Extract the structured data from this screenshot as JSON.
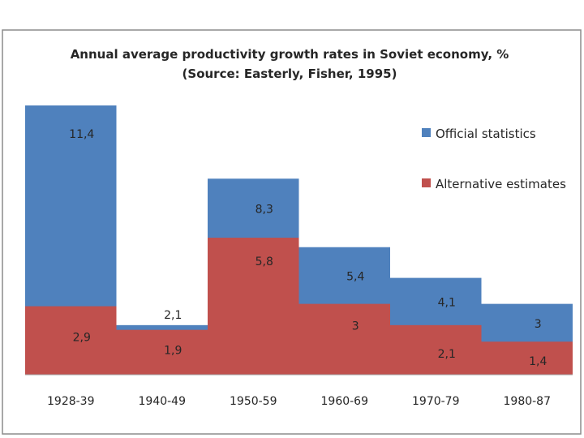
{
  "chart_data": {
    "type": "bar",
    "title": "Annual average productivity growth rates in Soviet economy, %",
    "subtitle": "(Source: Easterly, Fisher, 1995)",
    "categories": [
      "1928-39",
      "1940-49",
      "1950-59",
      "1960-69",
      "1970-79",
      "1980-87"
    ],
    "series": [
      {
        "name": "Official statistics",
        "color": "#4f81bd",
        "values": [
          11.4,
          2.1,
          8.3,
          5.4,
          4.1,
          3
        ]
      },
      {
        "name": "Alternative estimates",
        "color": "#c0504d",
        "values": [
          2.9,
          1.9,
          5.8,
          3,
          2.1,
          1.4
        ]
      }
    ],
    "value_labels": {
      "official": [
        "11,4",
        "2,1",
        "8,3",
        "5,4",
        "4,1",
        "3"
      ],
      "alternative": [
        "2,9",
        "1,9",
        "5,8",
        "3",
        "2,1",
        "1,4"
      ]
    },
    "ylim": [
      0,
      12
    ],
    "xlabel": "",
    "ylabel": "",
    "grid": false,
    "legend_position": "top-right"
  }
}
